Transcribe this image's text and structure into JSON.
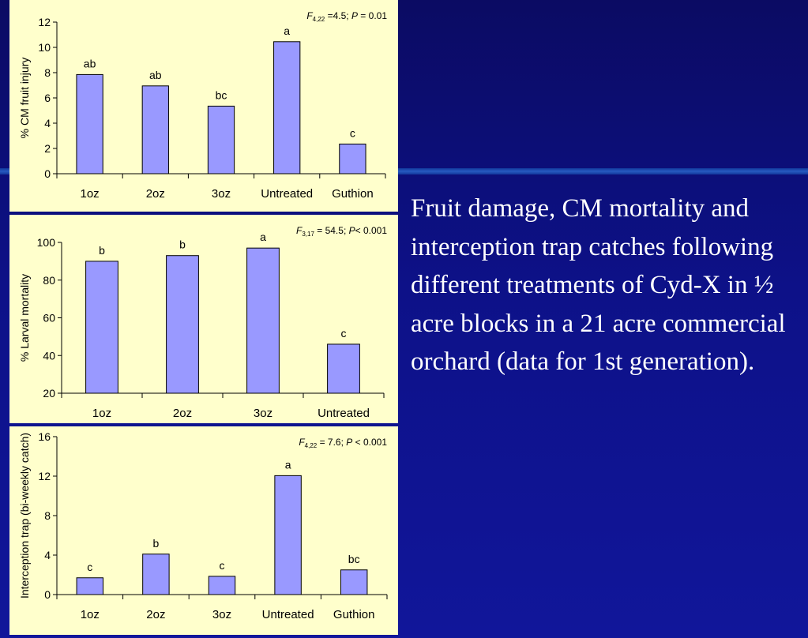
{
  "caption": "Fruit damage, CM mortality and interception trap catches following different treatments of Cyd-X in ½ acre blocks in a 21 acre commercial orchard (data for 1st generation).",
  "colors": {
    "bar": "#9999ff",
    "panel": "#ffffcc",
    "background": "#0d1188",
    "text": "#ffffff"
  },
  "chart_data": [
    {
      "type": "bar",
      "categories": [
        "1oz",
        "2oz",
        "3oz",
        "Untreated",
        "Guthion"
      ],
      "values": [
        7.85,
        6.95,
        5.35,
        10.45,
        2.35
      ],
      "letters": [
        "ab",
        "ab",
        "bc",
        "a",
        "c"
      ],
      "ylabel": "% CM fruit injury",
      "ylim": [
        0,
        12
      ],
      "yticks": [
        0,
        2,
        4,
        6,
        8,
        10,
        12
      ],
      "stat": {
        "F": "F",
        "sub": "4,22",
        "mid": " =4.5; ",
        "P": "P",
        "rest": " = 0.01"
      }
    },
    {
      "type": "bar",
      "categories": [
        "1oz",
        "2oz",
        "3oz",
        "Untreated"
      ],
      "values": [
        90,
        93,
        97,
        46
      ],
      "letters": [
        "b",
        "b",
        "a",
        "c"
      ],
      "ylabel": "% Larval mortality",
      "ylim": [
        20,
        100
      ],
      "yticks": [
        20,
        40,
        60,
        80,
        100
      ],
      "stat": {
        "F": "F",
        "sub": "3,17",
        "mid": " = 54.5; ",
        "P": "P",
        "rest": "< 0.001"
      }
    },
    {
      "type": "bar",
      "categories": [
        "1oz",
        "2oz",
        "3oz",
        "Untreated",
        "Guthion"
      ],
      "values": [
        1.7,
        4.1,
        1.85,
        12.05,
        2.5
      ],
      "letters": [
        "c",
        "b",
        "c",
        "a",
        "bc"
      ],
      "ylabel": "Interception trap (bi-weekly catch)",
      "ylim": [
        0,
        16
      ],
      "yticks": [
        0,
        4,
        8,
        12,
        16
      ],
      "stat": {
        "F": "F",
        "sub": "4,22",
        "mid": " = 7.6; ",
        "P": "P",
        "rest": " < 0.001"
      }
    }
  ]
}
